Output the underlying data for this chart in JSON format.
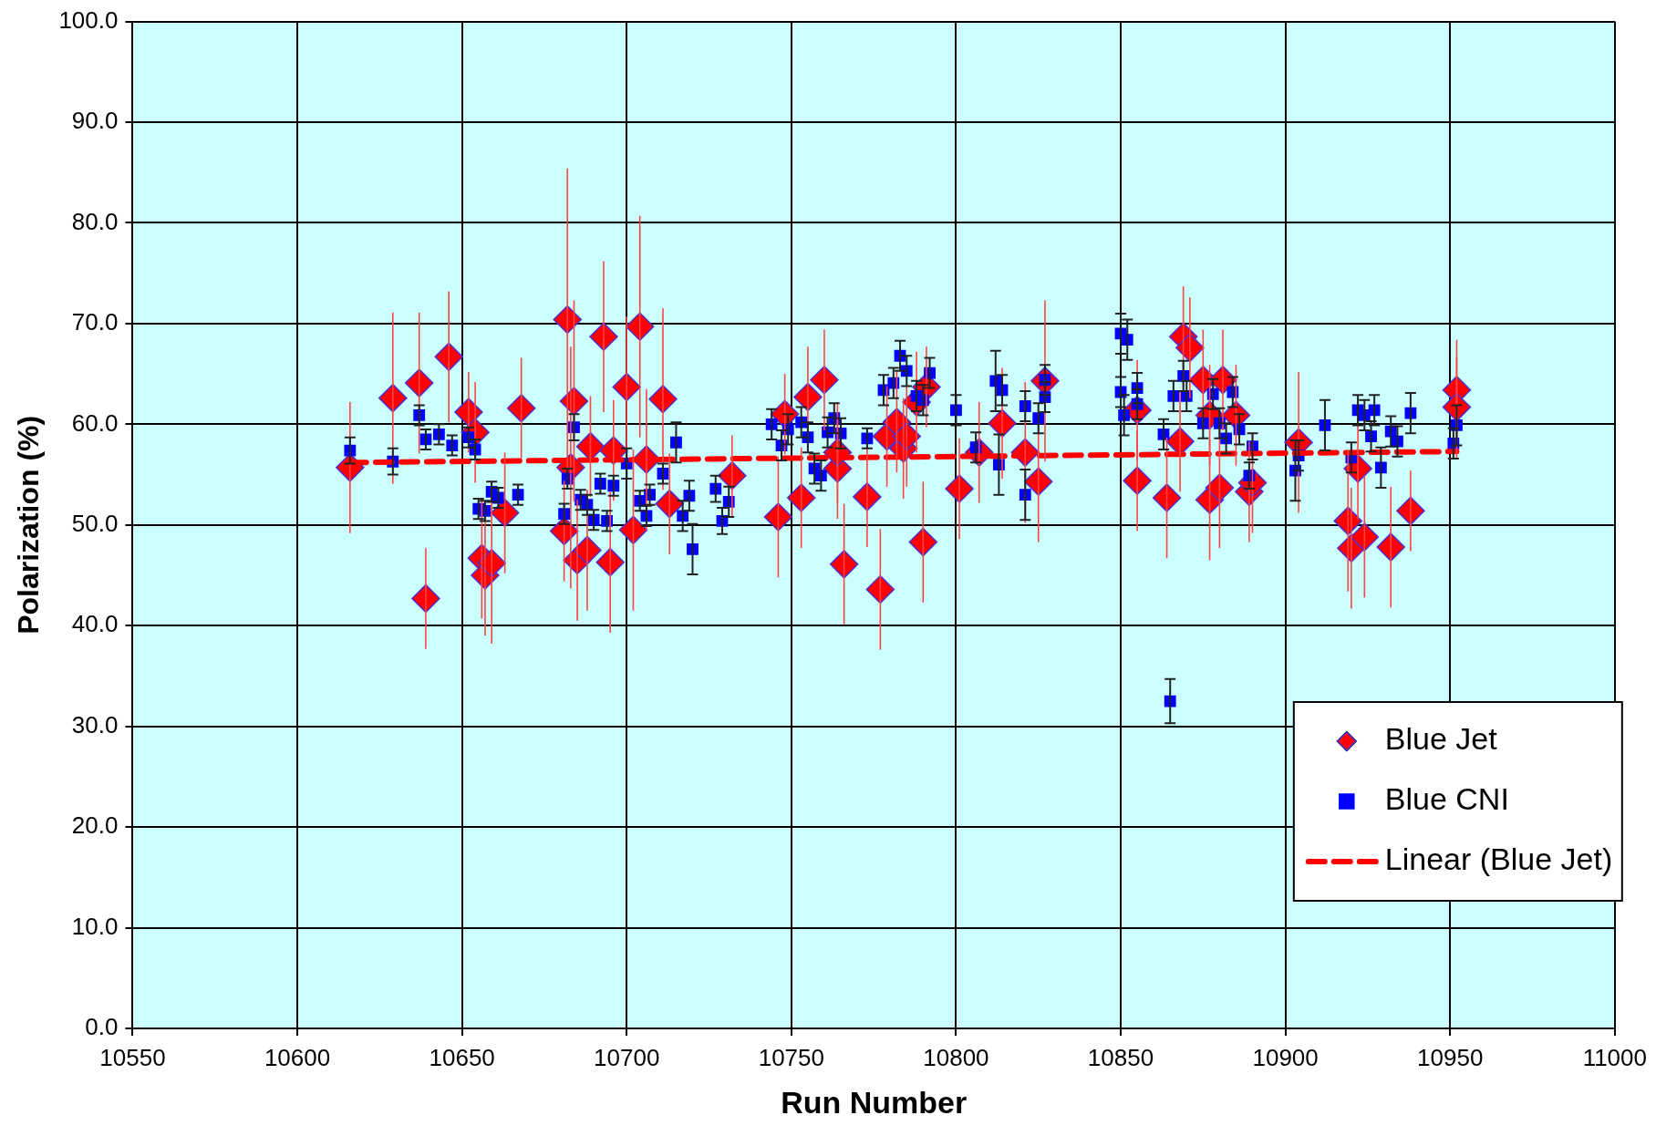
{
  "chart_data": {
    "type": "scatter",
    "xlabel": "Run Number",
    "ylabel": "Polarization (%)",
    "xlim": [
      10550,
      11000
    ],
    "xticks": [
      10550,
      10600,
      10650,
      10700,
      10750,
      10800,
      10850,
      10900,
      10950,
      11000
    ],
    "ylim": [
      0,
      100
    ],
    "yticks": [
      {
        "value": 0,
        "label": "0.0"
      },
      {
        "value": 10,
        "label": "10.0"
      },
      {
        "value": 20,
        "label": "20.0"
      },
      {
        "value": 30,
        "label": "30.0"
      },
      {
        "value": 40,
        "label": "40.0"
      },
      {
        "value": 50,
        "label": "50.0"
      },
      {
        "value": 60,
        "label": "60.0"
      },
      {
        "value": 70,
        "label": "70.0"
      },
      {
        "value": 80,
        "label": "80.0"
      },
      {
        "value": 90,
        "label": "90.0"
      },
      {
        "value": 100,
        "label": "100.0"
      }
    ],
    "grid": true,
    "legend": "bottom right",
    "series": [
      {
        "name": "Blue Jet",
        "marker": "diamond",
        "color": "#ff0000",
        "x": [
          10616,
          10629,
          10637,
          10639,
          10646,
          10652,
          10654,
          10656,
          10657,
          10659,
          10663,
          10668,
          10682,
          10681,
          10683,
          10684,
          10685,
          10688,
          10689,
          10693,
          10695,
          10696,
          10700,
          10702,
          10704,
          10706,
          10711,
          10713,
          10732,
          10746,
          10748,
          10753,
          10755,
          10760,
          10764,
          10766,
          10764,
          10773,
          10777,
          10779,
          10782,
          10784,
          10785,
          10788,
          10790,
          10791,
          10801,
          10807,
          10814,
          10821,
          10825,
          10827,
          10855,
          10855,
          10864,
          10868,
          10869,
          10871,
          10875,
          10877,
          10877,
          10880,
          10881,
          10885,
          10889,
          10890,
          10904,
          10919,
          10920,
          10922,
          10924,
          10932,
          10938,
          10952,
          10952
        ],
        "values": [
          55.7,
          62.6,
          64.1,
          42.7,
          66.7,
          61.2,
          59.2,
          46.7,
          45,
          46.2,
          51.2,
          61.6,
          70.4,
          49.4,
          55.7,
          62.3,
          46.5,
          47.5,
          57.8,
          68.7,
          46.3,
          57.4,
          63.7,
          49.5,
          69.7,
          56.5,
          62.5,
          52.1,
          54.9,
          50.8,
          61,
          52.7,
          62.7,
          64.4,
          55.6,
          46.1,
          57.2,
          52.8,
          43.6,
          58.8,
          60.2,
          57.6,
          58.8,
          62.2,
          48.3,
          63.7,
          53.6,
          57.2,
          60.1,
          57.2,
          54.3,
          64.3,
          54.4,
          61.4,
          52.7,
          58.3,
          68.7,
          67.6,
          64.4,
          60.9,
          52.5,
          53.7,
          64.4,
          60.9,
          53.3,
          54.2,
          58.2,
          50.4,
          47.7,
          55.6,
          48.8,
          47.8,
          51.4,
          63.4,
          61.7
        ],
        "errors": [
          6.5,
          8.5,
          7,
          5,
          6.5,
          4,
          5,
          6,
          6,
          8,
          6,
          5,
          15,
          5,
          12,
          10,
          6,
          6,
          5,
          7.5,
          7,
          5,
          7,
          8,
          11,
          7,
          9,
          5,
          4,
          6,
          4,
          5,
          5,
          5,
          5,
          6,
          5,
          5,
          6,
          5,
          5,
          5,
          5,
          5,
          6,
          4,
          5,
          5,
          5.5,
          7,
          6,
          8,
          5,
          5,
          6,
          5,
          5,
          5,
          5,
          5,
          6,
          6,
          5,
          5,
          5,
          5,
          7,
          7,
          6,
          5,
          6,
          6,
          4,
          5,
          5
        ]
      },
      {
        "name": "Blue CNI",
        "marker": "square",
        "color": "#0000ff",
        "x": [
          10616,
          10629,
          10637,
          10639,
          10643,
          10647,
          10652,
          10654,
          10655,
          10657,
          10659,
          10661,
          10667,
          10681,
          10682,
          10684,
          10686,
          10688,
          10690,
          10692,
          10694,
          10696,
          10700,
          10704,
          10706,
          10707,
          10711,
          10715,
          10717,
          10719,
          10720,
          10727,
          10729,
          10731,
          10744,
          10747,
          10749,
          10753,
          10755,
          10757,
          10759,
          10761,
          10763,
          10765,
          10773,
          10778,
          10781,
          10783,
          10785,
          10788,
          10790,
          10792,
          10800,
          10806,
          10812,
          10814,
          10813,
          10821,
          10821,
          10825,
          10827,
          10827,
          10850,
          10852,
          10850,
          10851,
          10855,
          10855,
          10863,
          10865,
          10866,
          10869,
          10870,
          10875,
          10878,
          10880,
          10882,
          10884,
          10886,
          10889,
          10890,
          10903,
          10904,
          10912,
          10922,
          10920,
          10924,
          10926,
          10927,
          10929,
          10932,
          10934,
          10938,
          10951,
          10952
        ],
        "values": [
          57.4,
          56.3,
          60.9,
          58.5,
          59,
          57.9,
          58.7,
          57.5,
          51.6,
          51.4,
          53.3,
          52.7,
          53,
          51.1,
          54.6,
          59.7,
          52.5,
          52,
          50.5,
          54.1,
          50.4,
          53.9,
          56.1,
          52.4,
          50.9,
          53,
          55.1,
          58.2,
          50.9,
          52.9,
          47.6,
          53.6,
          50.4,
          52.3,
          60,
          57.9,
          59.5,
          60.2,
          58.7,
          55.6,
          54.9,
          59.2,
          60.6,
          59.1,
          58.6,
          63.4,
          64.1,
          66.8,
          65.3,
          62.8,
          62.4,
          65.1,
          61.4,
          57.7,
          64.3,
          63.4,
          56,
          61.8,
          53,
          60.6,
          62.7,
          64.4,
          69,
          68.4,
          63.2,
          60.9,
          63.6,
          62,
          59,
          32.5,
          62.8,
          64.8,
          62.8,
          60.1,
          63,
          60.1,
          58.6,
          63.2,
          59.5,
          54.9,
          57.8,
          55.4,
          56.9,
          59.9,
          61.4,
          56.7,
          60.9,
          58.8,
          61.4,
          55.7,
          59.3,
          58.3,
          61.1,
          58.1,
          59.9
        ],
        "errors": [
          1.3,
          1.3,
          1,
          1,
          1,
          1,
          1,
          1,
          1,
          1,
          1,
          1,
          1,
          1,
          1,
          1.3,
          1,
          1,
          1,
          1,
          1,
          1,
          1.5,
          1,
          1,
          1,
          1,
          2,
          1.5,
          1.5,
          2.5,
          1.3,
          1.3,
          1.5,
          1.5,
          1.5,
          1.5,
          1.5,
          1.5,
          1.5,
          1.5,
          1.5,
          1.5,
          1.5,
          1,
          1.5,
          1.5,
          1.5,
          1.5,
          1.5,
          1.5,
          1.5,
          1.5,
          1.5,
          3,
          1.5,
          3,
          1.5,
          2.5,
          1.5,
          1.5,
          1.5,
          2,
          2,
          1.5,
          2,
          1.5,
          1.5,
          1.5,
          2.2,
          1.5,
          1.5,
          1.5,
          1.5,
          1.5,
          1.5,
          1.5,
          1.5,
          1.5,
          1.3,
          1.3,
          3,
          1.5,
          2.5,
          1.5,
          1.5,
          1.5,
          1.5,
          1.5,
          2,
          1.5,
          1.5,
          2,
          1.5,
          2
        ]
      },
      {
        "name": "Linear (Blue Jet)",
        "type": "line",
        "marker": "none",
        "line_style": "dashed",
        "color": "#ff0000",
        "x": [
          10616,
          10952
        ],
        "values": [
          56.2,
          57.3
        ]
      }
    ]
  }
}
